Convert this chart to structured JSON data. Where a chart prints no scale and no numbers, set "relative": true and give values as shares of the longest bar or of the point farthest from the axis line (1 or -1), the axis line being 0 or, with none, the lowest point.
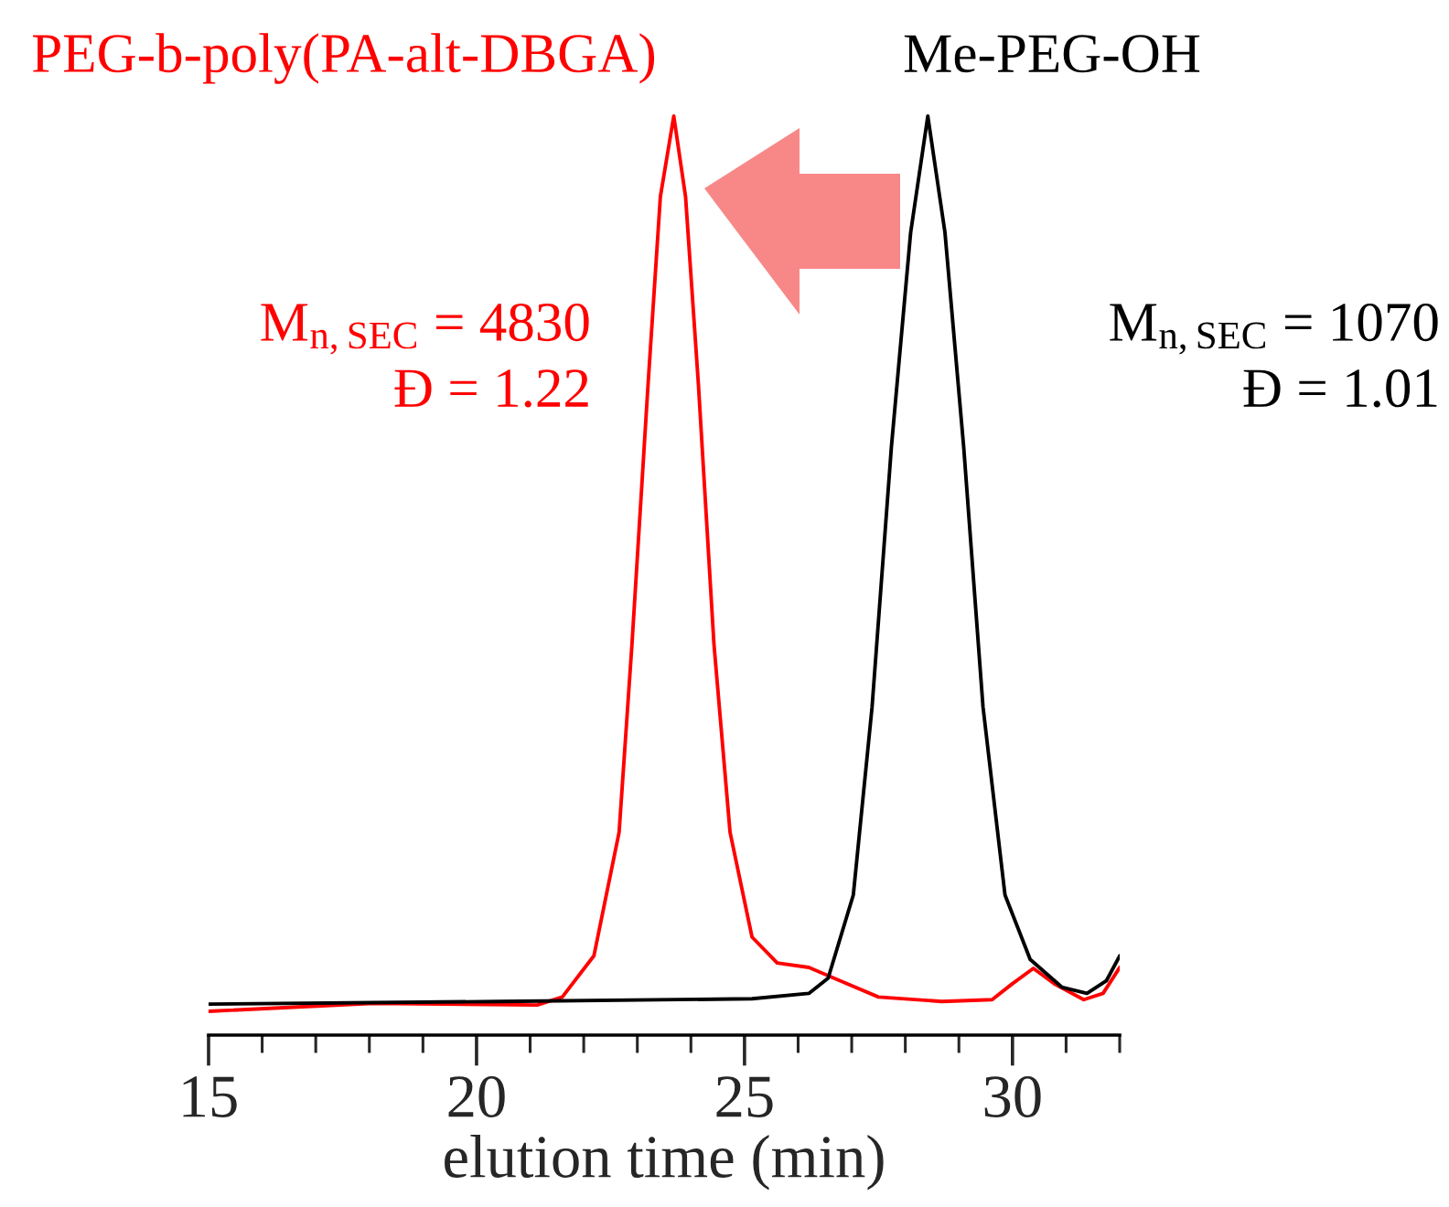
{
  "chart_data": {
    "type": "line",
    "relative": true,
    "xlabel": "elution time (min)",
    "xlim": [
      15,
      32
    ],
    "xticks": [
      15,
      20,
      25,
      30
    ],
    "grid": false,
    "legend": false,
    "line_style": "solid",
    "marker": "none",
    "series": [
      {
        "name": "PEG-b-poly(PA-alt-DBGA)",
        "color": "#ff0000",
        "x": [
          15,
          18.07,
          21.13,
          21.6,
          22.19,
          22.66,
          22.9,
          23.2,
          23.43,
          23.68,
          23.9,
          24.14,
          24.43,
          24.73,
          25.14,
          25.61,
          26.2,
          26.79,
          27.5,
          28.68,
          29.62,
          29.98,
          30.39,
          30.8,
          31.33,
          31.69,
          32
        ],
        "values": [
          0,
          0.009,
          0.007,
          0.016,
          0.062,
          0.2,
          0.41,
          0.7,
          0.91,
          1,
          0.91,
          0.7,
          0.41,
          0.2,
          0.083,
          0.054,
          0.049,
          0.034,
          0.016,
          0.011,
          0.013,
          0.03,
          0.048,
          0.03,
          0.013,
          0.02,
          0.049
        ]
      },
      {
        "name": "Me-PEG-OH",
        "color": "#000000",
        "x": [
          15,
          20.42,
          25.14,
          26.2,
          26.56,
          27.03,
          27.38,
          27.74,
          28.1,
          28.42,
          28.74,
          29.09,
          29.45,
          29.86,
          30.33,
          30.92,
          31.39,
          31.75,
          32
        ],
        "values": [
          0.008,
          0.011,
          0.014,
          0.02,
          0.037,
          0.13,
          0.34,
          0.63,
          0.87,
          1,
          0.87,
          0.63,
          0.34,
          0.13,
          0.058,
          0.027,
          0.02,
          0.034,
          0.062
        ]
      }
    ],
    "annotations": [
      "M$_{n,SEC}$ = 4830",
      "Đ = 1.22",
      "M$_{n,SEC}$ = 1070",
      "Đ = 1.01"
    ]
  }
}
